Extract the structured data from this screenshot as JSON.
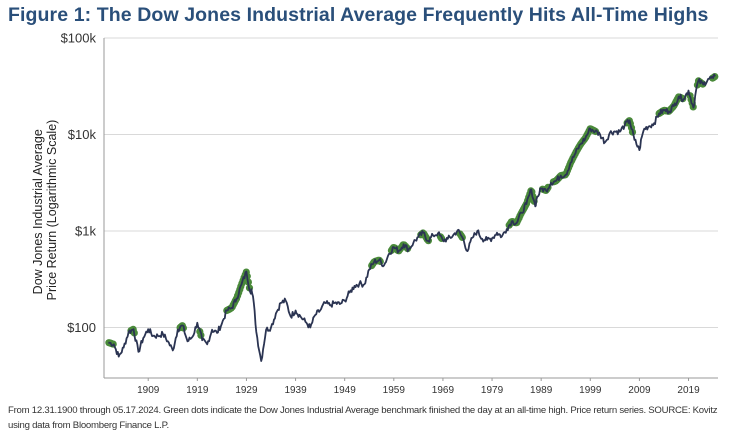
{
  "title": "Figure 1: The Dow Jones Industrial Average Frequently Hits All-Time Highs",
  "source_note": "From 12.31.1900 through 05.17.2024. Green dots indicate the Dow Jones Industrial Average benchmark finished the day at an all-time high. Price return series. SOURCE: Kovitz using data from Bloomberg Finance L.P.",
  "colors": {
    "line": "#2b3452",
    "dot": "#4a8a3a",
    "grid": "#d9d9d9",
    "title": "#2a4f7a"
  },
  "chart_data": {
    "type": "line",
    "title": "Figure 1: The Dow Jones Industrial Average Frequently Hits All-Time Highs",
    "xlabel": "",
    "ylabel": "Dow Jones Industrial Average Price Return (Logarithmic Scale)",
    "ylabel_lines": [
      "Dow Jones Industrial Average",
      "Price Return (Logarithmic Scale)"
    ],
    "y_scale": "log",
    "ylim": [
      30,
      100000
    ],
    "xlim": [
      1900,
      2025
    ],
    "grid": true,
    "y_ticks": [
      {
        "value": 100,
        "label": "$100"
      },
      {
        "value": 1000,
        "label": "$1k"
      },
      {
        "value": 10000,
        "label": "$10k"
      },
      {
        "value": 100000,
        "label": "$100k"
      }
    ],
    "x_ticks": [
      {
        "value": 1909,
        "label": "1909"
      },
      {
        "value": 1919,
        "label": "1919"
      },
      {
        "value": 1929,
        "label": "1929"
      },
      {
        "value": 1939,
        "label": "1939"
      },
      {
        "value": 1949,
        "label": "1949"
      },
      {
        "value": 1959,
        "label": "1959"
      },
      {
        "value": 1969,
        "label": "1969"
      },
      {
        "value": 1979,
        "label": "1979"
      },
      {
        "value": 1989,
        "label": "1989"
      },
      {
        "value": 1999,
        "label": "1999"
      },
      {
        "value": 2009,
        "label": "2009"
      },
      {
        "value": 2019,
        "label": "2019"
      }
    ],
    "series": [
      {
        "name": "Dow Jones Industrial Average",
        "points": [
          [
            1900.9,
            70
          ],
          [
            1902,
            67
          ],
          [
            1903,
            50
          ],
          [
            1904,
            62
          ],
          [
            1905,
            90
          ],
          [
            1906,
            96
          ],
          [
            1907,
            56
          ],
          [
            1908,
            78
          ],
          [
            1909,
            96
          ],
          [
            1910,
            82
          ],
          [
            1911,
            82
          ],
          [
            1912,
            86
          ],
          [
            1913,
            72
          ],
          [
            1914,
            58
          ],
          [
            1915,
            95
          ],
          [
            1916,
            105
          ],
          [
            1917,
            72
          ],
          [
            1918,
            80
          ],
          [
            1919,
            112
          ],
          [
            1920,
            74
          ],
          [
            1921,
            67
          ],
          [
            1922,
            95
          ],
          [
            1923,
            88
          ],
          [
            1924,
            110
          ],
          [
            1925,
            150
          ],
          [
            1926,
            160
          ],
          [
            1927,
            200
          ],
          [
            1928,
            280
          ],
          [
            1929,
            380
          ],
          [
            1929.8,
            230
          ],
          [
            1930,
            250
          ],
          [
            1930.5,
            180
          ],
          [
            1931,
            90
          ],
          [
            1932,
            45
          ],
          [
            1933,
            95
          ],
          [
            1934,
            100
          ],
          [
            1935,
            140
          ],
          [
            1936,
            180
          ],
          [
            1937,
            190
          ],
          [
            1938,
            130
          ],
          [
            1939,
            150
          ],
          [
            1940,
            130
          ],
          [
            1941,
            115
          ],
          [
            1942,
            100
          ],
          [
            1943,
            135
          ],
          [
            1944,
            150
          ],
          [
            1945,
            180
          ],
          [
            1946,
            170
          ],
          [
            1947,
            180
          ],
          [
            1948,
            175
          ],
          [
            1949,
            190
          ],
          [
            1950,
            230
          ],
          [
            1951,
            270
          ],
          [
            1952,
            285
          ],
          [
            1953,
            280
          ],
          [
            1954,
            400
          ],
          [
            1955,
            480
          ],
          [
            1956,
            500
          ],
          [
            1957,
            440
          ],
          [
            1958,
            580
          ],
          [
            1959,
            680
          ],
          [
            1960,
            620
          ],
          [
            1961,
            730
          ],
          [
            1962,
            640
          ],
          [
            1963,
            760
          ],
          [
            1964,
            870
          ],
          [
            1965,
            960
          ],
          [
            1966,
            790
          ],
          [
            1967,
            900
          ],
          [
            1968,
            950
          ],
          [
            1969,
            800
          ],
          [
            1970,
            830
          ],
          [
            1971,
            890
          ],
          [
            1972,
            1020
          ],
          [
            1973,
            850
          ],
          [
            1974,
            620
          ],
          [
            1975,
            850
          ],
          [
            1976,
            1000
          ],
          [
            1977,
            830
          ],
          [
            1978,
            810
          ],
          [
            1979,
            840
          ],
          [
            1980,
            960
          ],
          [
            1981,
            880
          ],
          [
            1982,
            1050
          ],
          [
            1983,
            1260
          ],
          [
            1984,
            1210
          ],
          [
            1985,
            1550
          ],
          [
            1986,
            1900
          ],
          [
            1987,
            2700
          ],
          [
            1987.8,
            1800
          ],
          [
            1988,
            2100
          ],
          [
            1989,
            2750
          ],
          [
            1990,
            2630
          ],
          [
            1991,
            3170
          ],
          [
            1992,
            3300
          ],
          [
            1993,
            3750
          ],
          [
            1994,
            3830
          ],
          [
            1995,
            5100
          ],
          [
            1996,
            6450
          ],
          [
            1997,
            7900
          ],
          [
            1998,
            9200
          ],
          [
            1999,
            11500
          ],
          [
            2000,
            10800
          ],
          [
            2001,
            10000
          ],
          [
            2002,
            8300
          ],
          [
            2003,
            10450
          ],
          [
            2004,
            10780
          ],
          [
            2005,
            10700
          ],
          [
            2006,
            12460
          ],
          [
            2007,
            14000
          ],
          [
            2008,
            8800
          ],
          [
            2009,
            6900
          ],
          [
            2009.5,
            9500
          ],
          [
            2010,
            11500
          ],
          [
            2011,
            12200
          ],
          [
            2012,
            13100
          ],
          [
            2013,
            16500
          ],
          [
            2014,
            17800
          ],
          [
            2015,
            17400
          ],
          [
            2016,
            19700
          ],
          [
            2017,
            24700
          ],
          [
            2018,
            23300
          ],
          [
            2019,
            28500
          ],
          [
            2020,
            19000
          ],
          [
            2020.5,
            28000
          ],
          [
            2021,
            36000
          ],
          [
            2022,
            33000
          ],
          [
            2023,
            37700
          ],
          [
            2024,
            38500
          ],
          [
            2024.4,
            40000
          ]
        ]
      }
    ],
    "all_time_high_periods": [
      [
        1901,
        1902
      ],
      [
        1905.5,
        1906.2
      ],
      [
        1915.5,
        1916.3
      ],
      [
        1919.5,
        1919.9
      ],
      [
        1925,
        1929.7
      ],
      [
        1954.5,
        1956.4
      ],
      [
        1958.5,
        1961.9
      ],
      [
        1964.5,
        1966.1
      ],
      [
        1968.5,
        1968.9
      ],
      [
        1972.5,
        1973.1
      ],
      [
        1982.5,
        1987.6
      ],
      [
        1989.3,
        1990.5
      ],
      [
        1991.5,
        2000.1
      ],
      [
        2006.5,
        2007.8
      ],
      [
        2013,
        2018
      ],
      [
        2019.3,
        2020.1
      ],
      [
        2020.8,
        2022
      ],
      [
        2023.9,
        2024.4
      ]
    ]
  }
}
